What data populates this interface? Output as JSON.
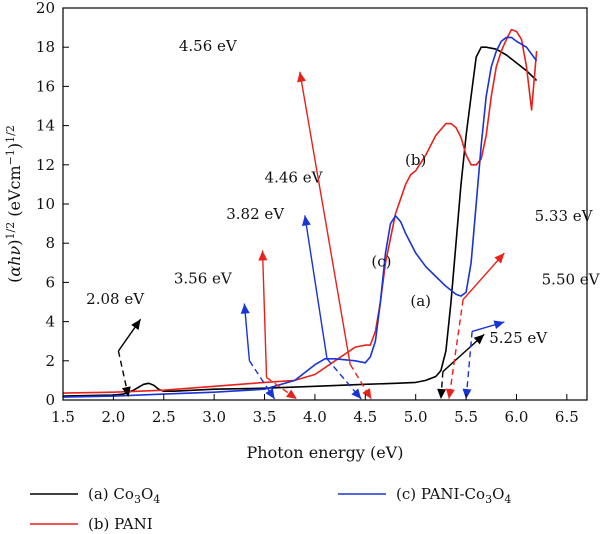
{
  "chart_data": {
    "type": "line",
    "xlabel": "Photon energy (eV)",
    "ylabel": "(αhν)1/2 (eVcm−1)1/2",
    "xlim": [
      1.5,
      6.7
    ],
    "ylim": [
      0,
      20
    ],
    "xticks": [
      "1.5",
      "2.0",
      "2.5",
      "3.0",
      "3.5",
      "4.0",
      "4.5",
      "5.0",
      "5.5",
      "6.0",
      "6.5"
    ],
    "yticks": [
      "0",
      "2",
      "4",
      "6",
      "8",
      "10",
      "12",
      "14",
      "16",
      "18",
      "20"
    ],
    "grid": false,
    "legend_position": "bottom",
    "series": [
      {
        "name": "(a) Co3O4",
        "legend_main": "(a) Co",
        "legend_sub1": "3",
        "legend_mid": "O",
        "legend_sub2": "4",
        "color": "#000000",
        "x": [
          1.5,
          2.0,
          2.1,
          2.2,
          2.3,
          2.35,
          2.4,
          2.45,
          2.5,
          2.6,
          2.8,
          3.0,
          3.5,
          4.0,
          4.5,
          4.8,
          5.0,
          5.1,
          5.2,
          5.25,
          5.3,
          5.35,
          5.4,
          5.45,
          5.5,
          5.55,
          5.6,
          5.65,
          5.7,
          5.8,
          5.9,
          6.0,
          6.1,
          6.2
        ],
        "y": [
          0.2,
          0.25,
          0.3,
          0.5,
          0.8,
          0.85,
          0.75,
          0.55,
          0.45,
          0.45,
          0.5,
          0.55,
          0.6,
          0.7,
          0.8,
          0.85,
          0.9,
          1.0,
          1.2,
          1.5,
          2.5,
          5.0,
          8.0,
          11.0,
          13.5,
          15.5,
          17.5,
          18.0,
          18.0,
          17.9,
          17.6,
          17.2,
          16.8,
          16.3
        ]
      },
      {
        "name": "(b) PANI",
        "legend_main": "(b) PANI",
        "color": "#e8211b",
        "x": [
          1.5,
          2.0,
          2.5,
          3.0,
          3.5,
          3.8,
          4.0,
          4.2,
          4.4,
          4.5,
          4.55,
          4.6,
          4.65,
          4.7,
          4.8,
          4.9,
          4.95,
          5.0,
          5.1,
          5.2,
          5.3,
          5.35,
          5.4,
          5.45,
          5.5,
          5.55,
          5.6,
          5.65,
          5.7,
          5.75,
          5.8,
          5.85,
          5.9,
          5.95,
          6.0,
          6.05,
          6.1,
          6.15,
          6.2
        ],
        "y": [
          0.35,
          0.4,
          0.5,
          0.7,
          0.9,
          1.0,
          1.3,
          2.0,
          2.7,
          2.8,
          2.8,
          3.5,
          5.0,
          7.0,
          9.5,
          11.0,
          11.5,
          11.7,
          12.5,
          13.5,
          14.1,
          14.1,
          13.9,
          13.4,
          12.5,
          12.0,
          12.0,
          12.3,
          13.5,
          15.5,
          17.0,
          17.8,
          18.4,
          18.9,
          18.8,
          18.4,
          17.0,
          14.8,
          17.8
        ]
      },
      {
        "name": "(c) PANI-Co3O4",
        "legend_main": "(c) PANI-Co",
        "legend_sub1": "3",
        "legend_mid": "O",
        "legend_sub2": "4",
        "color": "#1833d6",
        "x": [
          1.5,
          2.0,
          2.5,
          3.0,
          3.5,
          3.8,
          4.0,
          4.1,
          4.2,
          4.3,
          4.4,
          4.5,
          4.55,
          4.6,
          4.65,
          4.7,
          4.75,
          4.8,
          4.85,
          4.9,
          5.0,
          5.1,
          5.2,
          5.3,
          5.4,
          5.45,
          5.5,
          5.55,
          5.6,
          5.65,
          5.7,
          5.75,
          5.8,
          5.85,
          5.9,
          5.95,
          6.0,
          6.1,
          6.2
        ],
        "y": [
          0.15,
          0.2,
          0.3,
          0.4,
          0.55,
          1.0,
          1.8,
          2.1,
          2.1,
          2.05,
          2.0,
          1.9,
          2.2,
          3.0,
          5.0,
          7.5,
          9.0,
          9.4,
          9.1,
          8.5,
          7.5,
          6.8,
          6.3,
          5.8,
          5.4,
          5.3,
          5.5,
          7.0,
          10.0,
          13.0,
          15.5,
          17.0,
          17.8,
          18.3,
          18.5,
          18.5,
          18.3,
          18.0,
          17.3
        ]
      }
    ],
    "curve_labels": [
      {
        "text": "(a)",
        "x": 5.05,
        "y": 4.8
      },
      {
        "text": "(b)",
        "x": 5.0,
        "y": 12.0
      },
      {
        "text": "(c)",
        "x": 4.66,
        "y": 6.8
      }
    ],
    "annotations": [
      {
        "text": "2.08 eV",
        "color": "#000000",
        "value_x": 2.08,
        "tip": [
          2.15,
          0.15
        ],
        "text_at": [
          1.73,
          4.9
        ],
        "line_from": [
          2.05,
          2.5
        ],
        "arrow_end": [
          2.27,
          4.12
        ]
      },
      {
        "text": "3.56 eV",
        "color": "#1833d6",
        "value_x": 3.56,
        "tip": [
          3.6,
          0.05
        ],
        "text_at": [
          2.6,
          5.95
        ],
        "line_from": [
          3.35,
          2.0
        ],
        "arrow_end": [
          3.3,
          4.92
        ]
      },
      {
        "text": "3.82 eV",
        "color": "#e8211b",
        "value_x": 3.82,
        "tip": [
          3.82,
          0.05
        ],
        "text_at": [
          3.12,
          9.23
        ],
        "line_from": [
          3.52,
          1.15
        ],
        "arrow_end": [
          3.48,
          7.63
        ]
      },
      {
        "text": "4.46 eV",
        "color": "#1833d6",
        "value_x": 4.46,
        "tip": [
          4.46,
          0.05
        ],
        "text_at": [
          3.5,
          11.1
        ],
        "line_from": [
          4.12,
          2.1
        ],
        "arrow_end": [
          3.9,
          9.42
        ]
      },
      {
        "text": "4.56 eV",
        "color": "#e8211b",
        "value_x": 4.56,
        "tip": [
          4.56,
          0.05
        ],
        "text_at": [
          2.65,
          17.8
        ],
        "line_from": [
          4.35,
          1.82
        ],
        "arrow_end": [
          3.85,
          16.75
        ]
      },
      {
        "text": "5.25 eV",
        "color": "#000000",
        "value_x": 5.25,
        "tip": [
          5.25,
          0.05
        ],
        "text_at": [
          5.73,
          2.9
        ],
        "line_from": [
          5.27,
          1.45
        ],
        "arrow_end": [
          5.68,
          3.35
        ]
      },
      {
        "text": "5.33 eV",
        "color": "#e8211b",
        "value_x": 5.33,
        "tip": [
          5.33,
          0.05
        ],
        "text_at": [
          6.18,
          9.12
        ],
        "line_from": [
          5.47,
          5.12
        ],
        "arrow_end": [
          5.88,
          7.5
        ]
      },
      {
        "text": "5.50 eV",
        "color": "#1833d6",
        "value_x": 5.5,
        "tip": [
          5.5,
          0.05
        ],
        "text_at": [
          6.25,
          5.9
        ],
        "line_from": [
          5.56,
          3.5
        ],
        "arrow_end": [
          5.88,
          3.98
        ]
      }
    ]
  }
}
